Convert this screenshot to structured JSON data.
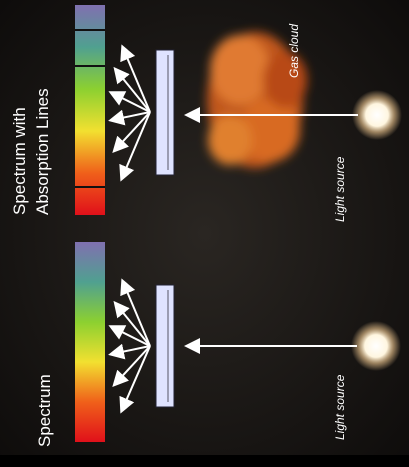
{
  "panels": [
    {
      "title": "Spectrum",
      "source_label": "Light source"
    },
    {
      "title": [
        "Spectrum with",
        "Absorption Lines"
      ],
      "source_label": "Light source",
      "cloud_label": "Gas cloud"
    }
  ]
}
